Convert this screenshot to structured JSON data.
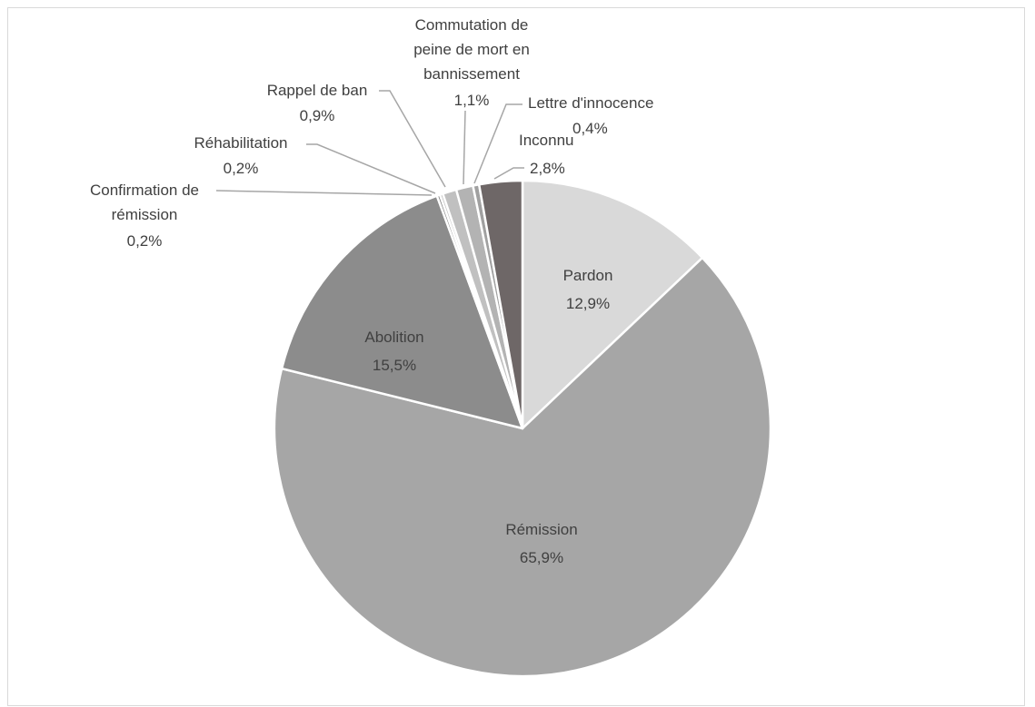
{
  "chart_data": {
    "type": "pie",
    "title": "",
    "slices": [
      {
        "label": "Pardon",
        "value": 12.9,
        "value_label": "12,9%",
        "color": "#d9d9d9"
      },
      {
        "label": "Rémission",
        "value": 65.9,
        "value_label": "65,9%",
        "color": "#a6a6a6"
      },
      {
        "label": "Abolition",
        "value": 15.5,
        "value_label": "15,5%",
        "color": "#8c8c8c"
      },
      {
        "label": "Confirmation de rémission",
        "value": 0.2,
        "value_label": "0,2%",
        "color": "#7f7f7f"
      },
      {
        "label": "Réhabilitation",
        "value": 0.2,
        "value_label": "0,2%",
        "color": "#bfbfbf"
      },
      {
        "label": "Rappel de ban",
        "value": 0.9,
        "value_label": "0,9%",
        "color": "#c0c0c0"
      },
      {
        "label": "Commutation de peine de mort en bannissement",
        "value": 1.1,
        "value_label": "1,1%",
        "color": "#b3b3b3"
      },
      {
        "label": "Lettre d'innocence",
        "value": 0.4,
        "value_label": "0,4%",
        "color": "#a0a0a0"
      },
      {
        "label": "Inconnu",
        "value": 2.8,
        "value_label": "2,8%",
        "color": "#6e6767"
      }
    ],
    "legend": "none",
    "colors": {
      "border": "#d9d9d9",
      "leader_line": "#a6a6a6",
      "text": "#404040",
      "slice_separator": "#ffffff"
    }
  }
}
